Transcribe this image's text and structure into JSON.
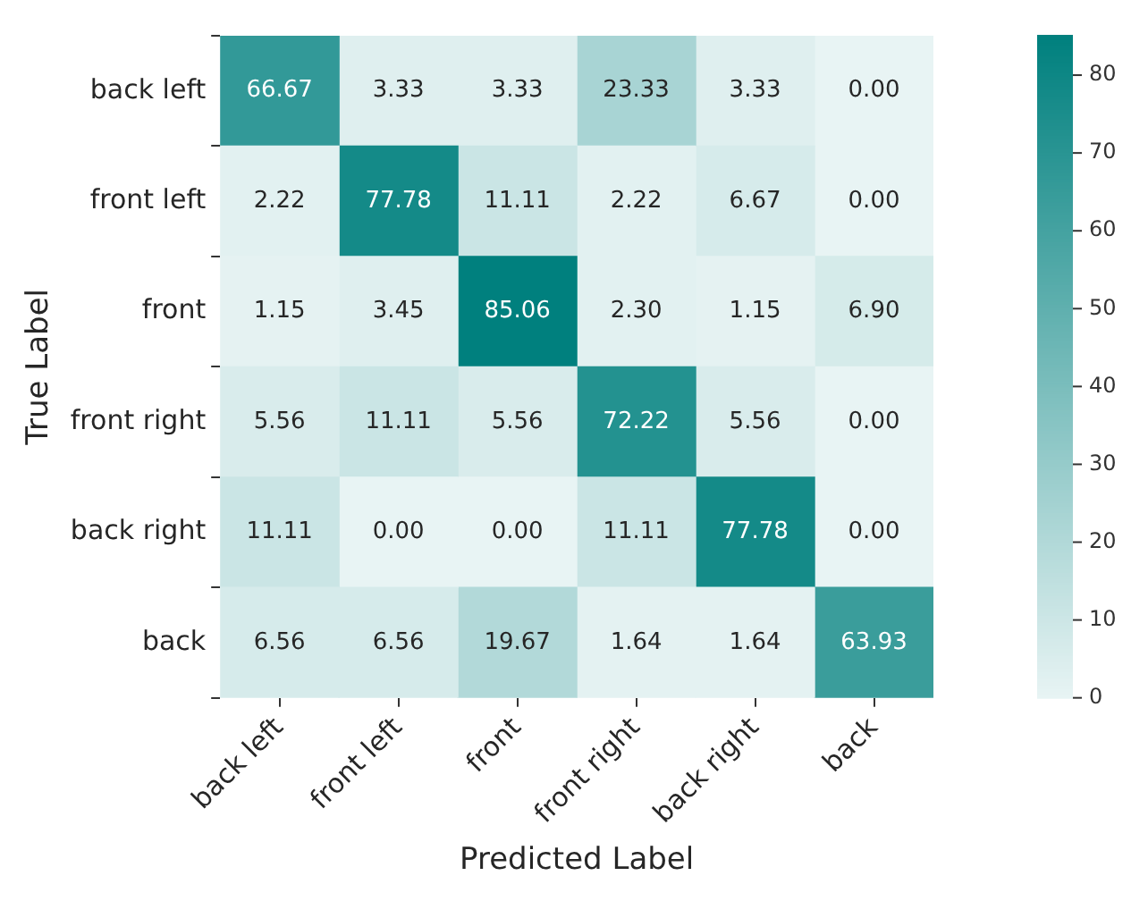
{
  "chart_data": {
    "type": "heatmap",
    "xlabel": "Predicted Label",
    "ylabel": "True Label",
    "categories": [
      "back left",
      "front left",
      "front",
      "front right",
      "back right",
      "back"
    ],
    "y_categories": [
      "back left",
      "front left",
      "front",
      "front right",
      "back right",
      "back"
    ],
    "cells": [
      [
        66.67,
        3.33,
        3.33,
        23.33,
        3.33,
        0.0
      ],
      [
        2.22,
        77.78,
        11.11,
        2.22,
        6.67,
        0.0
      ],
      [
        1.15,
        3.45,
        85.06,
        2.3,
        1.15,
        6.9
      ],
      [
        5.56,
        11.11,
        5.56,
        72.22,
        5.56,
        0.0
      ],
      [
        11.11,
        0.0,
        0.0,
        11.11,
        77.78,
        0.0
      ],
      [
        6.56,
        6.56,
        19.67,
        1.64,
        1.64,
        63.93
      ]
    ],
    "cell_labels": [
      [
        "66.67",
        "3.33",
        "3.33",
        "23.33",
        "3.33",
        "0.00"
      ],
      [
        "2.22",
        "77.78",
        "11.11",
        "2.22",
        "6.67",
        "0.00"
      ],
      [
        "1.15",
        "3.45",
        "85.06",
        "2.30",
        "1.15",
        "6.90"
      ],
      [
        "5.56",
        "11.11",
        "5.56",
        "72.22",
        "5.56",
        "0.00"
      ],
      [
        "11.11",
        "0.00",
        "0.00",
        "11.11",
        "77.78",
        "0.00"
      ],
      [
        "6.56",
        "6.56",
        "19.67",
        "1.64",
        "1.64",
        "63.93"
      ]
    ],
    "clim": [
      0,
      85.06
    ],
    "cticks": [
      0,
      10,
      20,
      30,
      40,
      50,
      60,
      70,
      80
    ]
  }
}
